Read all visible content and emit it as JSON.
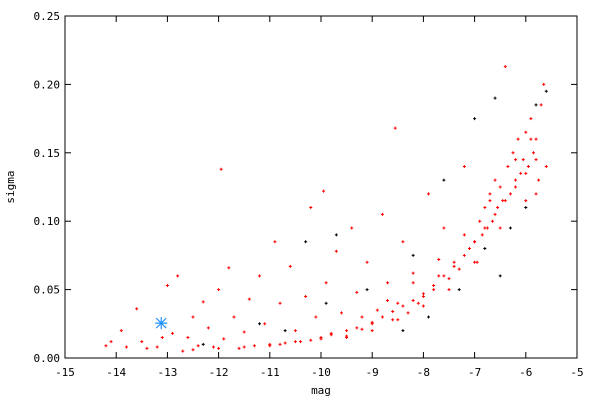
{
  "chart_data": {
    "type": "scatter",
    "xlabel": "mag",
    "ylabel": "sigma",
    "xlim": [
      -15,
      -5
    ],
    "ylim": [
      0,
      0.25
    ],
    "xticks": [
      "-15",
      "-14",
      "-13",
      "-12",
      "-11",
      "-10",
      "-9",
      "-8",
      "-7",
      "-6",
      "-5"
    ],
    "yticks": [
      "0.00",
      "0.05",
      "0.10",
      "0.15",
      "0.20",
      "0.25"
    ],
    "grid": false,
    "series": [
      {
        "color": "#ff0000",
        "marker": "plus",
        "points": [
          [
            -14.2,
            0.009
          ],
          [
            -14.1,
            0.012
          ],
          [
            -13.9,
            0.02
          ],
          [
            -13.8,
            0.008
          ],
          [
            -13.6,
            0.036
          ],
          [
            -13.5,
            0.012
          ],
          [
            -13.4,
            0.007
          ],
          [
            -13.2,
            0.008
          ],
          [
            -13.1,
            0.015
          ],
          [
            -13.0,
            0.053
          ],
          [
            -12.9,
            0.018
          ],
          [
            -12.8,
            0.06
          ],
          [
            -12.7,
            0.005
          ],
          [
            -12.6,
            0.015
          ],
          [
            -12.5,
            0.03
          ],
          [
            -12.4,
            0.009
          ],
          [
            -12.3,
            0.041
          ],
          [
            -12.2,
            0.022
          ],
          [
            -12.1,
            0.008
          ],
          [
            -12.0,
            0.05
          ],
          [
            -11.95,
            0.138
          ],
          [
            -11.9,
            0.014
          ],
          [
            -11.8,
            0.066
          ],
          [
            -11.7,
            0.03
          ],
          [
            -11.6,
            0.007
          ],
          [
            -11.5,
            0.019
          ],
          [
            -11.4,
            0.043
          ],
          [
            -11.3,
            0.009
          ],
          [
            -11.2,
            0.06
          ],
          [
            -11.1,
            0.025
          ],
          [
            -11.0,
            0.01
          ],
          [
            -10.9,
            0.085
          ],
          [
            -10.8,
            0.04
          ],
          [
            -10.7,
            0.011
          ],
          [
            -10.6,
            0.067
          ],
          [
            -10.5,
            0.02
          ],
          [
            -10.4,
            0.012
          ],
          [
            -10.3,
            0.045
          ],
          [
            -10.2,
            0.11
          ],
          [
            -10.1,
            0.03
          ],
          [
            -10.0,
            0.014
          ],
          [
            -9.95,
            0.122
          ],
          [
            -9.9,
            0.055
          ],
          [
            -9.8,
            0.018
          ],
          [
            -9.7,
            0.078
          ],
          [
            -9.6,
            0.033
          ],
          [
            -9.5,
            0.016
          ],
          [
            -9.4,
            0.095
          ],
          [
            -9.3,
            0.048
          ],
          [
            -9.2,
            0.021
          ],
          [
            -9.1,
            0.07
          ],
          [
            -9.0,
            0.025
          ],
          [
            -8.9,
            0.035
          ],
          [
            -8.8,
            0.105
          ],
          [
            -8.7,
            0.055
          ],
          [
            -8.6,
            0.028
          ],
          [
            -8.55,
            0.168
          ],
          [
            -8.5,
            0.04
          ],
          [
            -8.4,
            0.085
          ],
          [
            -8.3,
            0.033
          ],
          [
            -8.2,
            0.062
          ],
          [
            -8.1,
            0.04
          ],
          [
            -8.0,
            0.045
          ],
          [
            -7.9,
            0.12
          ],
          [
            -7.8,
            0.05
          ],
          [
            -7.7,
            0.06
          ],
          [
            -7.6,
            0.095
          ],
          [
            -7.5,
            0.058
          ],
          [
            -7.4,
            0.07
          ],
          [
            -7.3,
            0.065
          ],
          [
            -7.2,
            0.14
          ],
          [
            -7.1,
            0.08
          ],
          [
            -7.0,
            0.085
          ],
          [
            -6.95,
            0.07
          ],
          [
            -6.9,
            0.1
          ],
          [
            -6.85,
            0.09
          ],
          [
            -6.8,
            0.11
          ],
          [
            -6.75,
            0.095
          ],
          [
            -6.7,
            0.12
          ],
          [
            -6.65,
            0.1
          ],
          [
            -6.6,
            0.13
          ],
          [
            -6.55,
            0.11
          ],
          [
            -6.5,
            0.125
          ],
          [
            -6.45,
            0.115
          ],
          [
            -6.4,
            0.213
          ],
          [
            -6.35,
            0.14
          ],
          [
            -6.3,
            0.12
          ],
          [
            -6.25,
            0.15
          ],
          [
            -6.2,
            0.13
          ],
          [
            -6.15,
            0.16
          ],
          [
            -6.1,
            0.135
          ],
          [
            -6.05,
            0.145
          ],
          [
            -6.0,
            0.165
          ],
          [
            -5.95,
            0.14
          ],
          [
            -5.9,
            0.175
          ],
          [
            -5.85,
            0.15
          ],
          [
            -5.8,
            0.16
          ],
          [
            -5.75,
            0.13
          ],
          [
            -5.7,
            0.185
          ],
          [
            -5.65,
            0.2
          ],
          [
            -5.6,
            0.14
          ],
          [
            -12.5,
            0.006
          ],
          [
            -12.0,
            0.007
          ],
          [
            -11.5,
            0.008
          ],
          [
            -11.0,
            0.009
          ],
          [
            -10.8,
            0.01
          ],
          [
            -10.5,
            0.012
          ],
          [
            -10.2,
            0.013
          ],
          [
            -10.0,
            0.015
          ],
          [
            -9.8,
            0.017
          ],
          [
            -9.5,
            0.02
          ],
          [
            -9.3,
            0.022
          ],
          [
            -9.0,
            0.026
          ],
          [
            -8.8,
            0.03
          ],
          [
            -8.6,
            0.034
          ],
          [
            -8.4,
            0.038
          ],
          [
            -8.2,
            0.042
          ],
          [
            -8.0,
            0.047
          ],
          [
            -7.8,
            0.053
          ],
          [
            -7.6,
            0.06
          ],
          [
            -7.4,
            0.067
          ],
          [
            -7.2,
            0.075
          ],
          [
            -7.0,
            0.085
          ],
          [
            -6.8,
            0.095
          ],
          [
            -6.6,
            0.105
          ],
          [
            -6.4,
            0.115
          ],
          [
            -6.2,
            0.125
          ],
          [
            -6.0,
            0.135
          ],
          [
            -5.8,
            0.145
          ],
          [
            -9.5,
            0.015
          ],
          [
            -9.0,
            0.02
          ],
          [
            -8.5,
            0.028
          ],
          [
            -8.0,
            0.038
          ],
          [
            -7.5,
            0.05
          ],
          [
            -7.0,
            0.07
          ],
          [
            -6.5,
            0.095
          ],
          [
            -6.0,
            0.115
          ],
          [
            -5.8,
            0.12
          ],
          [
            -9.2,
            0.03
          ],
          [
            -8.7,
            0.042
          ],
          [
            -8.2,
            0.055
          ],
          [
            -7.7,
            0.072
          ],
          [
            -7.2,
            0.09
          ],
          [
            -6.7,
            0.115
          ],
          [
            -6.2,
            0.145
          ],
          [
            -5.9,
            0.16
          ]
        ]
      },
      {
        "color": "#000000",
        "marker": "plus",
        "points": [
          [
            -12.3,
            0.01
          ],
          [
            -11.2,
            0.025
          ],
          [
            -10.3,
            0.085
          ],
          [
            -9.7,
            0.09
          ],
          [
            -9.1,
            0.05
          ],
          [
            -8.4,
            0.02
          ],
          [
            -8.2,
            0.075
          ],
          [
            -7.6,
            0.13
          ],
          [
            -7.3,
            0.05
          ],
          [
            -7.0,
            0.175
          ],
          [
            -6.8,
            0.08
          ],
          [
            -6.6,
            0.19
          ],
          [
            -6.5,
            0.06
          ],
          [
            -6.3,
            0.095
          ],
          [
            -6.0,
            0.11
          ],
          [
            -5.8,
            0.185
          ],
          [
            -5.6,
            0.195
          ],
          [
            -7.9,
            0.03
          ],
          [
            -10.7,
            0.02
          ],
          [
            -9.9,
            0.04
          ]
        ]
      },
      {
        "color": "#1e90ff",
        "marker": "star",
        "points": [
          [
            -13.12,
            0.0255
          ]
        ]
      }
    ]
  }
}
